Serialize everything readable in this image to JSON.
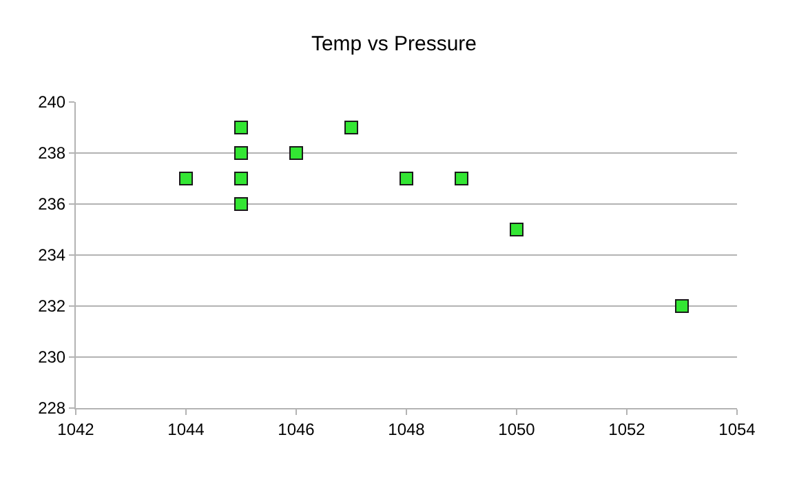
{
  "chart_data": {
    "type": "scatter",
    "title": "Temp vs Pressure",
    "x": [
      1044,
      1045,
      1045,
      1045,
      1045,
      1046,
      1047,
      1048,
      1049,
      1050,
      1053
    ],
    "values": [
      237,
      239,
      238,
      237,
      236,
      238,
      239,
      237,
      237,
      235,
      232
    ],
    "color": "#33e633",
    "marker": "square",
    "xlim": [
      1042,
      1054
    ],
    "xticks": [
      1042,
      1044,
      1046,
      1048,
      1050,
      1052,
      1054
    ],
    "ylim": [
      228,
      240
    ],
    "yticks": [
      228,
      230,
      232,
      234,
      236,
      238,
      240
    ],
    "grid": "y"
  }
}
